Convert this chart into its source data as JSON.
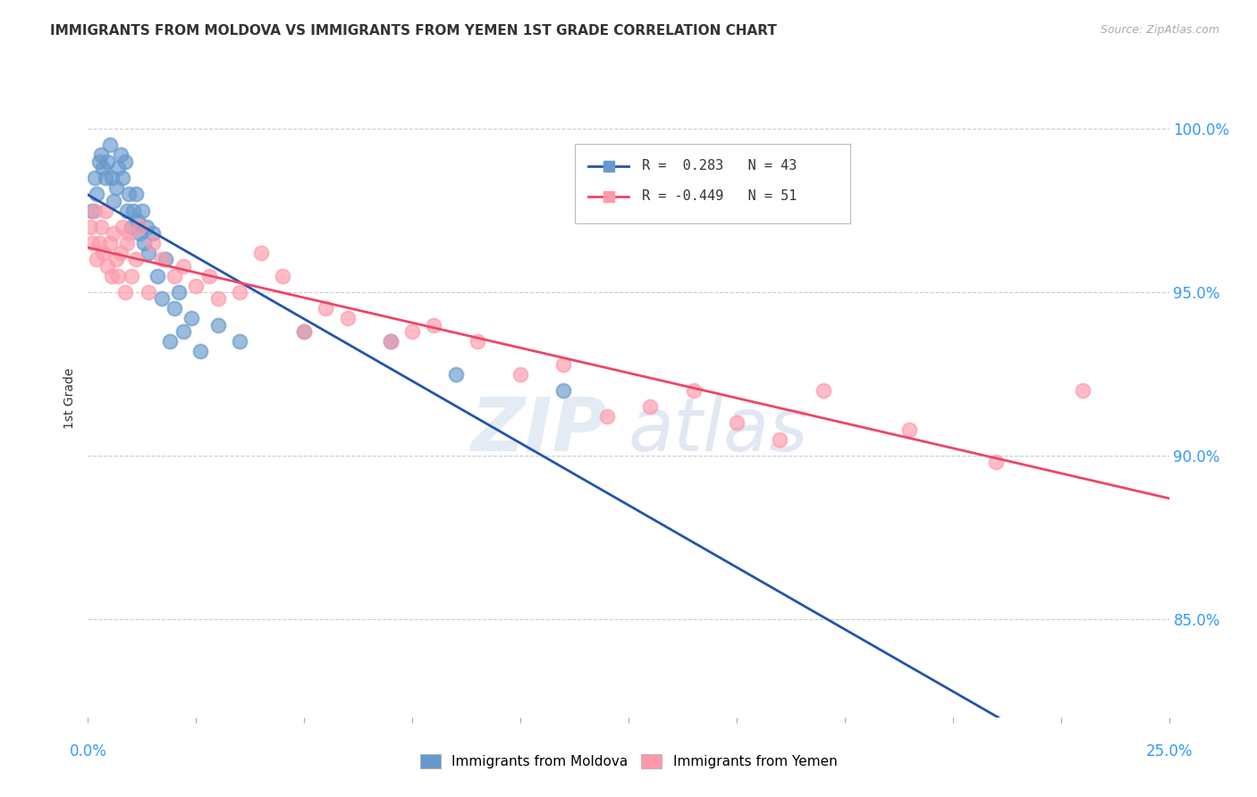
{
  "title": "IMMIGRANTS FROM MOLDOVA VS IMMIGRANTS FROM YEMEN 1ST GRADE CORRELATION CHART",
  "source": "Source: ZipAtlas.com",
  "ylabel": "1st Grade",
  "y_ticks": [
    85.0,
    90.0,
    95.0,
    100.0
  ],
  "x_range": [
    0.0,
    25.0
  ],
  "y_range": [
    82.0,
    101.5
  ],
  "moldova_R": 0.283,
  "moldova_N": 43,
  "yemen_R": -0.449,
  "yemen_N": 51,
  "moldova_color": "#6699CC",
  "yemen_color": "#FF99AA",
  "moldova_line_color": "#2255AA",
  "yemen_line_color": "#EE4466",
  "moldova_x": [
    0.1,
    0.15,
    0.2,
    0.25,
    0.3,
    0.35,
    0.4,
    0.45,
    0.5,
    0.55,
    0.6,
    0.65,
    0.7,
    0.75,
    0.8,
    0.85,
    0.9,
    0.95,
    1.0,
    1.05,
    1.1,
    1.15,
    1.2,
    1.25,
    1.3,
    1.35,
    1.4,
    1.5,
    1.6,
    1.7,
    1.8,
    1.9,
    2.0,
    2.1,
    2.2,
    2.4,
    2.6,
    3.0,
    3.5,
    5.0,
    7.0,
    8.5,
    11.0
  ],
  "moldova_y": [
    97.5,
    98.5,
    98.0,
    99.0,
    99.2,
    98.8,
    98.5,
    99.0,
    99.5,
    98.5,
    97.8,
    98.2,
    98.8,
    99.2,
    98.5,
    99.0,
    97.5,
    98.0,
    97.0,
    97.5,
    98.0,
    97.2,
    96.8,
    97.5,
    96.5,
    97.0,
    96.2,
    96.8,
    95.5,
    94.8,
    96.0,
    93.5,
    94.5,
    95.0,
    93.8,
    94.2,
    93.2,
    94.0,
    93.5,
    93.8,
    93.5,
    92.5,
    92.0
  ],
  "yemen_x": [
    0.05,
    0.1,
    0.15,
    0.2,
    0.25,
    0.3,
    0.35,
    0.4,
    0.45,
    0.5,
    0.55,
    0.6,
    0.65,
    0.7,
    0.75,
    0.8,
    0.85,
    0.9,
    0.95,
    1.0,
    1.1,
    1.2,
    1.4,
    1.5,
    1.7,
    2.0,
    2.2,
    2.5,
    2.8,
    3.0,
    3.5,
    4.0,
    4.5,
    5.0,
    5.5,
    6.0,
    7.0,
    7.5,
    8.0,
    9.0,
    10.0,
    11.0,
    12.0,
    13.0,
    14.0,
    15.0,
    16.0,
    17.0,
    19.0,
    21.0,
    23.0
  ],
  "yemen_y": [
    97.0,
    96.5,
    97.5,
    96.0,
    96.5,
    97.0,
    96.2,
    97.5,
    95.8,
    96.5,
    95.5,
    96.8,
    96.0,
    95.5,
    96.2,
    97.0,
    95.0,
    96.5,
    96.8,
    95.5,
    96.0,
    97.0,
    95.0,
    96.5,
    96.0,
    95.5,
    95.8,
    95.2,
    95.5,
    94.8,
    95.0,
    96.2,
    95.5,
    93.8,
    94.5,
    94.2,
    93.5,
    93.8,
    94.0,
    93.5,
    92.5,
    92.8,
    91.2,
    91.5,
    92.0,
    91.0,
    90.5,
    92.0,
    90.8,
    89.8,
    92.0
  ],
  "background_color": "#FFFFFF",
  "grid_color": "#CCCCCC"
}
